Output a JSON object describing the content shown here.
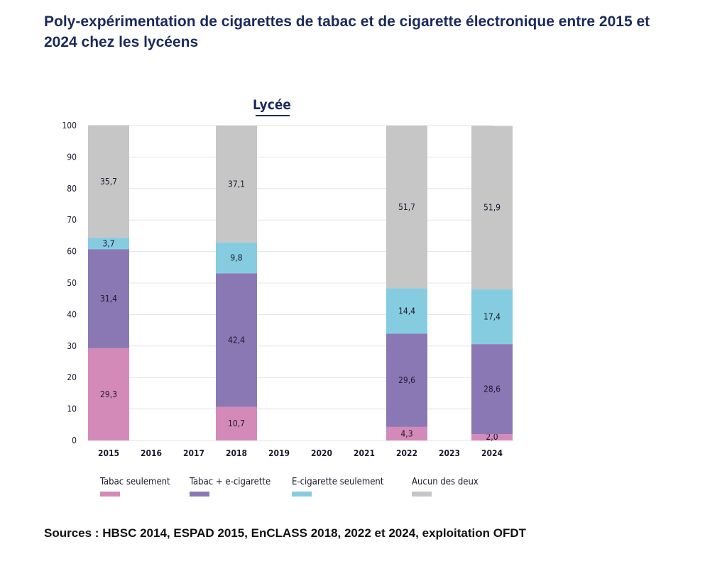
{
  "title": "Poly-expérimentation de cigarettes de tabac et de cigarette électronique entre 2015 et 2024 chez les lycéens",
  "source": "Sources : HBSC 2014, ESPAD 2015, EnCLASS 2018, 2022 et 2024, exploitation OFDT",
  "chart_data": {
    "type": "bar",
    "stacked": true,
    "title": "Lycée",
    "xlabel": "",
    "ylabel": "",
    "ylim": [
      0,
      100
    ],
    "yticks": [
      0,
      10,
      20,
      30,
      40,
      50,
      60,
      70,
      80,
      90,
      100
    ],
    "grid": true,
    "categories": [
      "2015",
      "2016",
      "2017",
      "2018",
      "2019",
      "2020",
      "2021",
      "2022",
      "2023",
      "2024"
    ],
    "series": [
      {
        "name": "Tabac seulement",
        "color": "#d48ab8",
        "values": [
          29.3,
          null,
          null,
          10.7,
          null,
          null,
          null,
          4.3,
          null,
          2.0
        ],
        "labels": [
          "29,3",
          "",
          "",
          "10,7",
          "",
          "",
          "",
          "4,3",
          "",
          "2,0"
        ]
      },
      {
        "name": "Tabac + e-cigarette",
        "color": "#8a78b4",
        "values": [
          31.4,
          null,
          null,
          42.4,
          null,
          null,
          null,
          29.6,
          null,
          28.6
        ],
        "labels": [
          "31,4",
          "",
          "",
          "42,4",
          "",
          "",
          "",
          "29,6",
          "",
          "28,6"
        ]
      },
      {
        "name": "E-cigarette seulement",
        "color": "#86cce0",
        "values": [
          3.7,
          null,
          null,
          9.8,
          null,
          null,
          null,
          14.4,
          null,
          17.4
        ],
        "labels": [
          "3,7",
          "",
          "",
          "9,8",
          "",
          "",
          "",
          "14,4",
          "",
          "17,4"
        ]
      },
      {
        "name": "Aucun des deux",
        "color": "#c6c6c6",
        "values": [
          35.7,
          null,
          null,
          37.1,
          null,
          null,
          null,
          51.7,
          null,
          51.9
        ],
        "labels": [
          "35,7",
          "",
          "",
          "37,1",
          "",
          "",
          "",
          "51,7",
          "",
          "51,9"
        ]
      }
    ],
    "legend_position": "bottom"
  }
}
